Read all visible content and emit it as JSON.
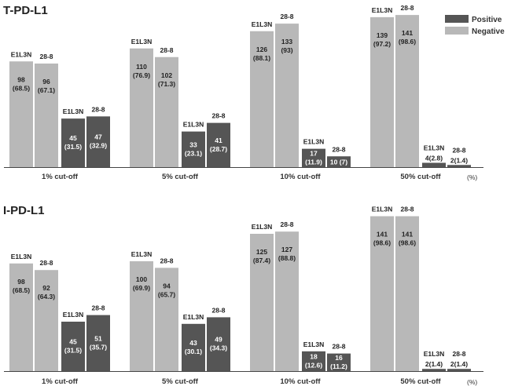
{
  "chart_data": [
    {
      "type": "bar",
      "title": "T-PD-L1",
      "categories": [
        "1% cut-off",
        "5% cut-off",
        "10% cut-off",
        "50% cut-off"
      ],
      "unit_label": "(%)",
      "legend": [
        {
          "name": "Positive",
          "color": "#555555"
        },
        {
          "name": "Negative",
          "color": "#b8b8b8"
        }
      ],
      "series": [
        {
          "name": "Negative",
          "antibody": "E1L3N",
          "values": [
            98,
            110,
            126,
            139
          ],
          "pct": [
            "68.5",
            "76.9",
            "88.1",
            "97.2"
          ]
        },
        {
          "name": "Negative",
          "antibody": "28-8",
          "values": [
            96,
            102,
            133,
            141
          ],
          "pct": [
            "67.1",
            "71.3",
            "93",
            "98.6"
          ]
        },
        {
          "name": "Positive",
          "antibody": "E1L3N",
          "values": [
            45,
            33,
            17,
            4
          ],
          "pct": [
            "31.5",
            "23.1",
            "11.9",
            "2.8"
          ]
        },
        {
          "name": "Positive",
          "antibody": "28-8",
          "values": [
            47,
            41,
            10,
            2
          ],
          "pct": [
            "32.9",
            "28.7",
            "7",
            "1.4"
          ]
        }
      ],
      "ylim": [
        0,
        143
      ]
    },
    {
      "type": "bar",
      "title": "I-PD-L1",
      "categories": [
        "1% cut-off",
        "5% cut-off",
        "10% cut-off",
        "50% cut-off"
      ],
      "unit_label": "(%)",
      "series": [
        {
          "name": "Negative",
          "antibody": "E1L3N",
          "values": [
            98,
            100,
            125,
            141
          ],
          "pct": [
            "68.5",
            "69.9",
            "87.4",
            "98.6"
          ]
        },
        {
          "name": "Negative",
          "antibody": "28-8",
          "values": [
            92,
            94,
            127,
            141
          ],
          "pct": [
            "64.3",
            "65.7",
            "88.8",
            "98.6"
          ]
        },
        {
          "name": "Positive",
          "antibody": "E1L3N",
          "values": [
            45,
            43,
            18,
            2
          ],
          "pct": [
            "31.5",
            "30.1",
            "12.6",
            "1.4"
          ]
        },
        {
          "name": "Positive",
          "antibody": "28-8",
          "values": [
            51,
            49,
            16,
            2
          ],
          "pct": [
            "35.7",
            "34.3",
            "11.2",
            "1.4"
          ]
        }
      ],
      "ylim": [
        0,
        143
      ]
    }
  ],
  "colors": {
    "positive": "#555555",
    "negative": "#b8b8b8",
    "axis": "#444444"
  }
}
